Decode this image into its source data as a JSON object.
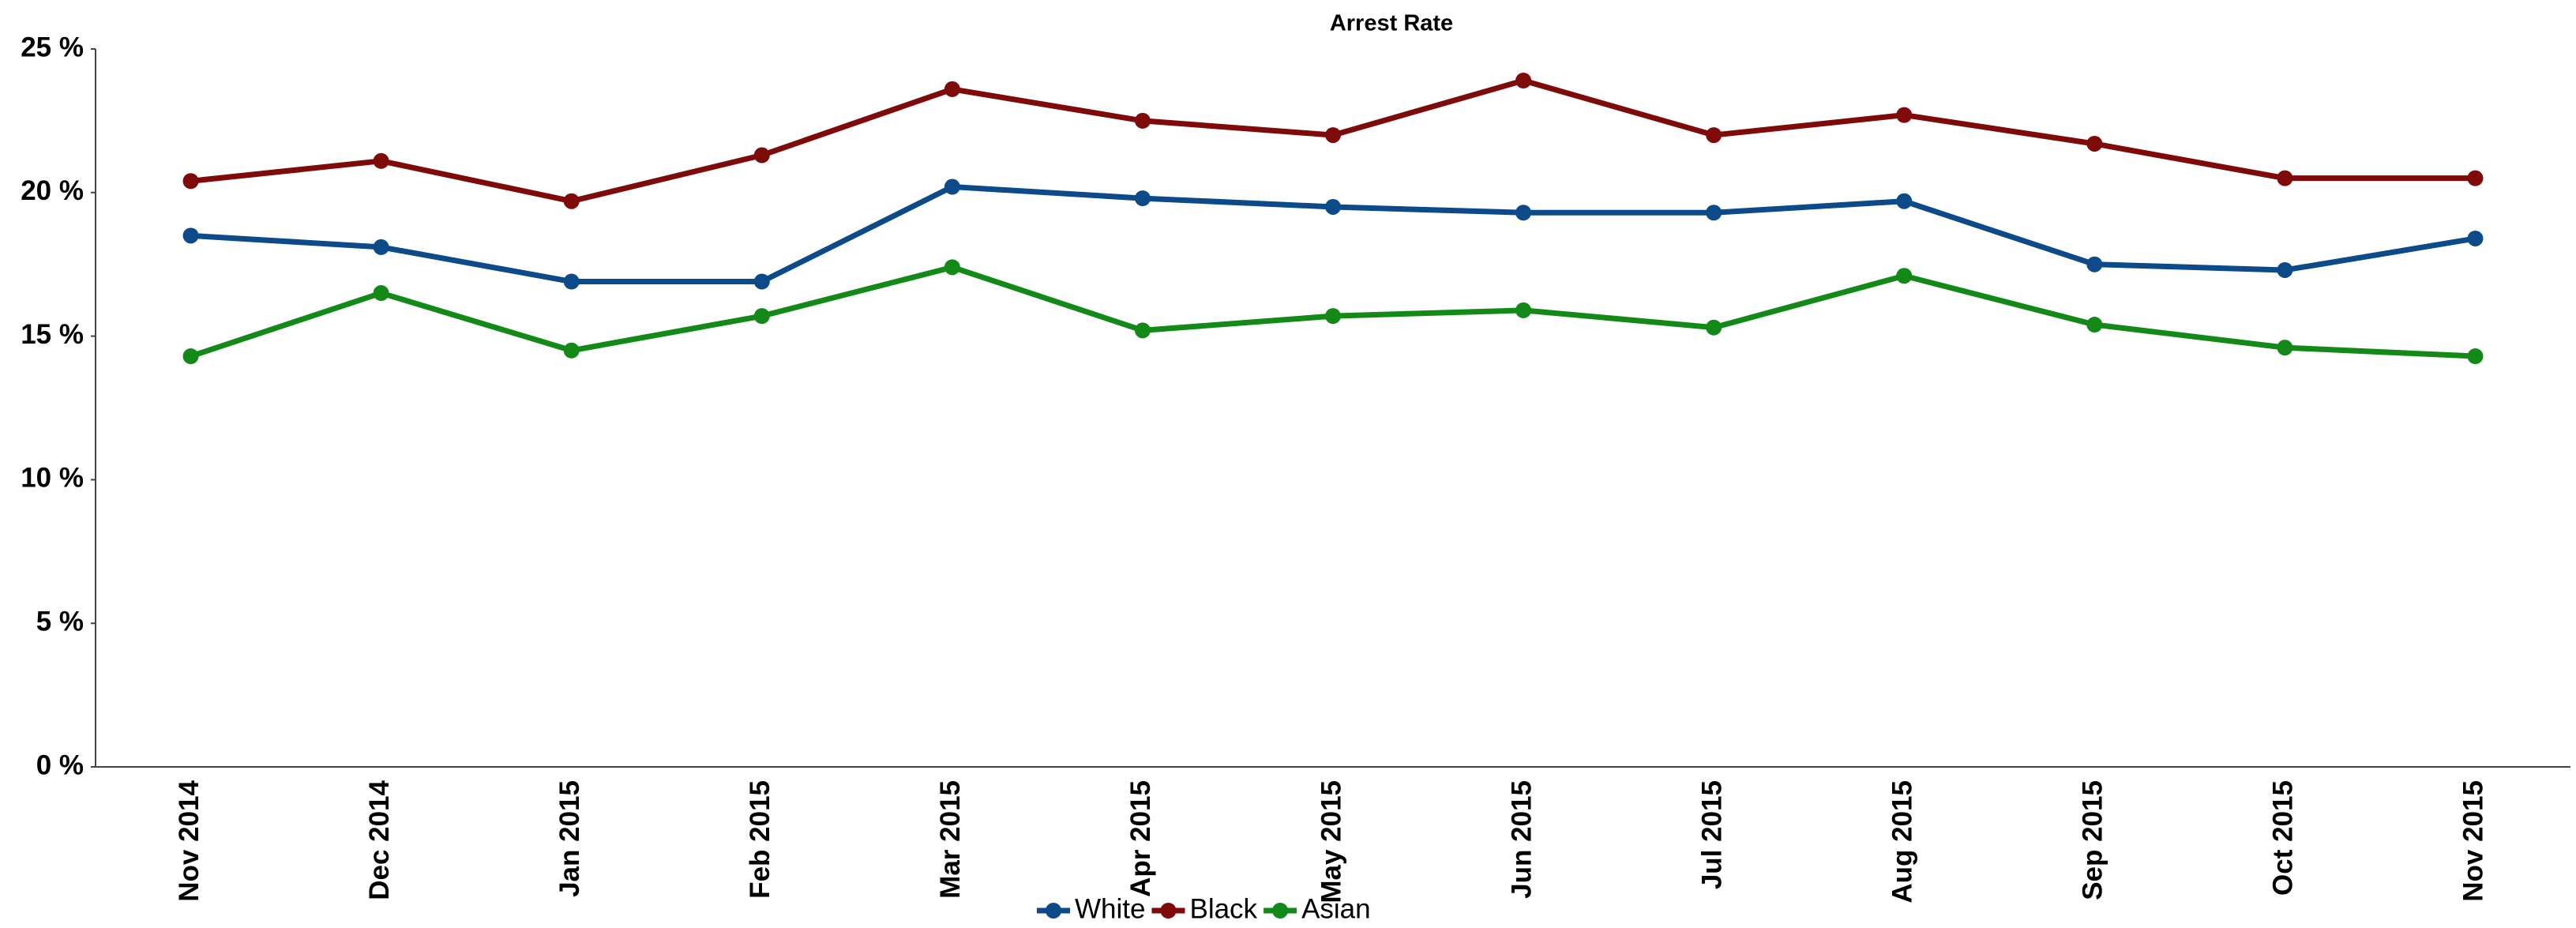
{
  "chart_data": {
    "type": "line",
    "title": "Arrest Rate",
    "categories": [
      "Nov 2014",
      "Dec 2014",
      "Jan 2015",
      "Feb 2015",
      "Mar 2015",
      "Apr 2015",
      "May 2015",
      "Jun 2015",
      "Jul 2015",
      "Aug 2015",
      "Sep 2015",
      "Oct 2015",
      "Nov 2015"
    ],
    "series": [
      {
        "name": "White",
        "color": "#0d4a8a",
        "values": [
          18.5,
          18.1,
          16.9,
          16.9,
          20.2,
          19.8,
          19.5,
          19.3,
          19.3,
          19.7,
          17.5,
          17.3,
          18.4
        ]
      },
      {
        "name": "Black",
        "color": "#7f0a0a",
        "values": [
          20.4,
          21.1,
          19.7,
          21.3,
          23.6,
          22.5,
          22.0,
          23.9,
          22.0,
          22.7,
          21.7,
          20.5,
          20.5
        ]
      },
      {
        "name": "Asian",
        "color": "#138a17",
        "values": [
          14.3,
          16.5,
          14.5,
          15.7,
          17.4,
          15.2,
          15.7,
          15.9,
          15.3,
          17.1,
          15.4,
          14.6,
          14.3
        ]
      }
    ],
    "ylim": [
      0,
      25
    ],
    "yticks": [
      {
        "value": 0,
        "label": "0 %"
      },
      {
        "value": 5,
        "label": "5 %"
      },
      {
        "value": 10,
        "label": "10 %"
      },
      {
        "value": 15,
        "label": "15 %"
      },
      {
        "value": 20,
        "label": "20 %"
      },
      {
        "value": 25,
        "label": "25 %"
      }
    ],
    "grid": false
  }
}
